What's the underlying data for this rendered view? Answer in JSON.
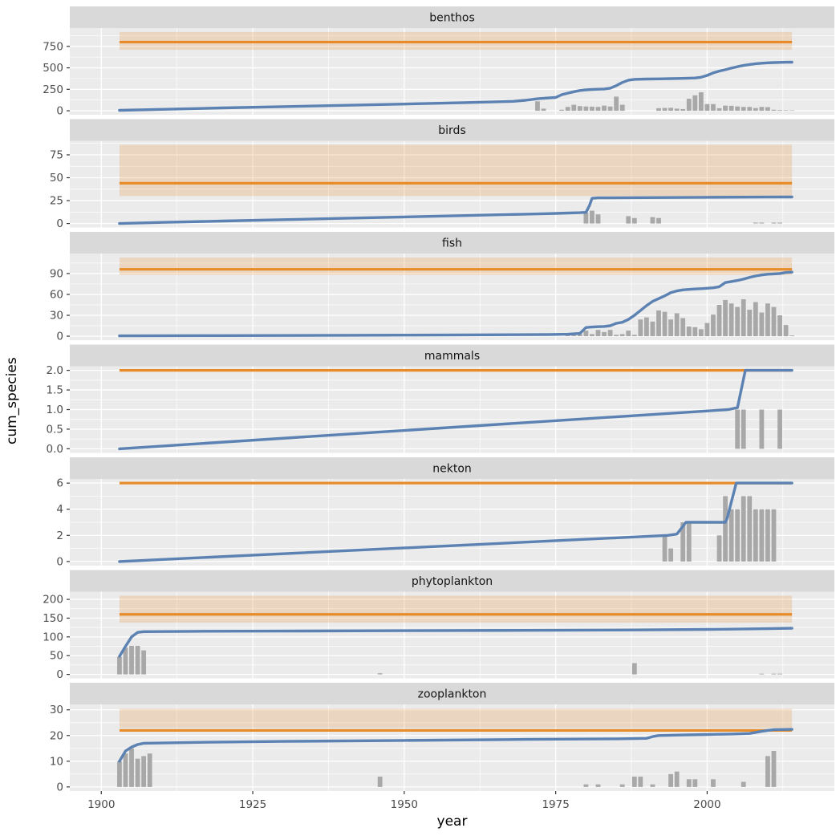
{
  "axes": {
    "x_label": "year",
    "y_label": "cum_species",
    "x_ticks": [
      1900,
      1925,
      1950,
      1975,
      2000
    ],
    "x_tick_labels": [
      "1900",
      "1925",
      "1950",
      "1975",
      "2000"
    ],
    "x_minor": [
      1912.5,
      1937.5,
      1962.5,
      1987.5,
      2012.5
    ],
    "xlim": [
      1894.8,
      2021
    ],
    "data_x_range": [
      1903,
      2014
    ]
  },
  "colors": {
    "panel_bg": "#EBEBEB",
    "strip_bg": "#D9D9D9",
    "grid": "#FFFFFF",
    "bar": "#A8A8A8",
    "cum_line": "#5B82B2",
    "ref_line": "#E78C28",
    "ref_band": "rgba(231,140,40,0.22)",
    "tick_text": "#4D4D4D",
    "strip_text": "#141414",
    "tick_mark": "#333333"
  },
  "chart_data": [
    {
      "type": "line+bar",
      "facet": "benthos",
      "ylim": [
        -46,
        963
      ],
      "y_ticks": [
        0,
        250,
        500,
        750
      ],
      "y_tick_labels": [
        "0",
        "250",
        "500",
        "750"
      ],
      "y_minor": [
        125,
        375,
        625,
        875
      ],
      "reference_line": 800,
      "reference_band": [
        710,
        917
      ],
      "line": [
        [
          1903,
          5
        ],
        [
          1910,
          17
        ],
        [
          1920,
          33
        ],
        [
          1930,
          48
        ],
        [
          1940,
          63
        ],
        [
          1950,
          78
        ],
        [
          1960,
          95
        ],
        [
          1968,
          110
        ],
        [
          1970,
          122
        ],
        [
          1972,
          140
        ],
        [
          1974,
          150
        ],
        [
          1975,
          155
        ],
        [
          1976,
          188
        ],
        [
          1977,
          205
        ],
        [
          1978,
          222
        ],
        [
          1979,
          236
        ],
        [
          1980,
          244
        ],
        [
          1981,
          248
        ],
        [
          1982,
          251
        ],
        [
          1983,
          254
        ],
        [
          1984,
          263
        ],
        [
          1985,
          292
        ],
        [
          1986,
          330
        ],
        [
          1987,
          357
        ],
        [
          1988,
          366
        ],
        [
          1990,
          370
        ],
        [
          1992,
          372
        ],
        [
          1994,
          374
        ],
        [
          1996,
          377
        ],
        [
          1998,
          382
        ],
        [
          1999,
          390
        ],
        [
          2000,
          412
        ],
        [
          2001,
          442
        ],
        [
          2002,
          462
        ],
        [
          2003,
          478
        ],
        [
          2004,
          497
        ],
        [
          2005,
          514
        ],
        [
          2006,
          528
        ],
        [
          2007,
          539
        ],
        [
          2008,
          548
        ],
        [
          2009,
          554
        ],
        [
          2010,
          558
        ],
        [
          2011,
          561
        ],
        [
          2012,
          563
        ],
        [
          2013,
          565
        ],
        [
          2014,
          566
        ]
      ],
      "bars": [
        [
          1972,
          110
        ],
        [
          1973,
          25
        ],
        [
          1976,
          12
        ],
        [
          1977,
          45
        ],
        [
          1978,
          70
        ],
        [
          1979,
          55
        ],
        [
          1980,
          50
        ],
        [
          1981,
          48
        ],
        [
          1982,
          45
        ],
        [
          1983,
          60
        ],
        [
          1984,
          50
        ],
        [
          1985,
          165
        ],
        [
          1986,
          70
        ],
        [
          1992,
          30
        ],
        [
          1993,
          33
        ],
        [
          1994,
          35
        ],
        [
          1995,
          25
        ],
        [
          1996,
          20
        ],
        [
          1997,
          140
        ],
        [
          1998,
          180
        ],
        [
          1999,
          215
        ],
        [
          2000,
          78
        ],
        [
          2001,
          78
        ],
        [
          2002,
          30
        ],
        [
          2003,
          60
        ],
        [
          2004,
          58
        ],
        [
          2005,
          50
        ],
        [
          2006,
          45
        ],
        [
          2007,
          45
        ],
        [
          2008,
          32
        ],
        [
          2009,
          45
        ],
        [
          2010,
          42
        ],
        [
          2011,
          12
        ],
        [
          2012,
          8
        ],
        [
          2013,
          6
        ],
        [
          2014,
          5
        ]
      ]
    },
    {
      "type": "line+bar",
      "facet": "birds",
      "ylim": [
        -4.3,
        90.3
      ],
      "y_ticks": [
        0,
        25,
        50,
        75
      ],
      "y_tick_labels": [
        "0",
        "25",
        "50",
        "75"
      ],
      "y_minor": [
        12.5,
        37.5,
        62.5,
        87.5
      ],
      "reference_line": 44,
      "reference_band": [
        30,
        86
      ],
      "line": [
        [
          1903,
          0
        ],
        [
          1910,
          1.2
        ],
        [
          1920,
          2.7
        ],
        [
          1930,
          4.2
        ],
        [
          1940,
          5.7
        ],
        [
          1950,
          7.2
        ],
        [
          1960,
          8.7
        ],
        [
          1970,
          10.2
        ],
        [
          1975,
          11
        ],
        [
          1979,
          11.8
        ],
        [
          1980,
          12.2
        ],
        [
          1980.6,
          20
        ],
        [
          1981,
          27.5
        ],
        [
          1982,
          28
        ],
        [
          1990,
          28.3
        ],
        [
          2000,
          28.6
        ],
        [
          2010,
          28.9
        ],
        [
          2014,
          29
        ]
      ],
      "bars": [
        [
          1980,
          12
        ],
        [
          1981,
          14
        ],
        [
          1982,
          10
        ],
        [
          1987,
          8
        ],
        [
          1988,
          6
        ],
        [
          1991,
          7
        ],
        [
          1992,
          6
        ],
        [
          2008,
          1
        ],
        [
          2009,
          1
        ],
        [
          2011,
          1
        ],
        [
          2012,
          1
        ]
      ]
    },
    {
      "type": "line+bar",
      "facet": "fish",
      "ylim": [
        -5.7,
        118.7
      ],
      "y_ticks": [
        0,
        30,
        60,
        90
      ],
      "y_tick_labels": [
        "0",
        "30",
        "60",
        "90"
      ],
      "y_minor": [
        15,
        45,
        75,
        105
      ],
      "reference_line": 96,
      "reference_band": [
        88,
        113
      ],
      "line": [
        [
          1903,
          0.5
        ],
        [
          1920,
          0.9
        ],
        [
          1940,
          1.3
        ],
        [
          1950,
          1.6
        ],
        [
          1960,
          1.9
        ],
        [
          1968,
          2.1
        ],
        [
          1974,
          2.4
        ],
        [
          1977,
          2.8
        ],
        [
          1979,
          4
        ],
        [
          1980,
          12.5
        ],
        [
          1981,
          13.2
        ],
        [
          1982,
          13.6
        ],
        [
          1983,
          14
        ],
        [
          1984,
          15
        ],
        [
          1985,
          18.5
        ],
        [
          1986,
          20
        ],
        [
          1987,
          24
        ],
        [
          1988,
          30
        ],
        [
          1989,
          37
        ],
        [
          1990,
          44
        ],
        [
          1991,
          50
        ],
        [
          1992,
          54
        ],
        [
          1993,
          58
        ],
        [
          1994,
          62.5
        ],
        [
          1995,
          65
        ],
        [
          1996,
          66.5
        ],
        [
          1997,
          67.2
        ],
        [
          1998,
          67.8
        ],
        [
          1999,
          68.2
        ],
        [
          2000,
          68.8
        ],
        [
          2001,
          69.5
        ],
        [
          2002,
          71
        ],
        [
          2003,
          77
        ],
        [
          2004,
          78.5
        ],
        [
          2005,
          80
        ],
        [
          2006,
          82
        ],
        [
          2007,
          84.5
        ],
        [
          2008,
          86.5
        ],
        [
          2009,
          88
        ],
        [
          2010,
          89
        ],
        [
          2011,
          89.5
        ],
        [
          2012,
          90
        ],
        [
          2013,
          91.5
        ],
        [
          2014,
          92
        ]
      ],
      "bars": [
        [
          1977,
          4
        ],
        [
          1978,
          3
        ],
        [
          1979,
          3
        ],
        [
          1980,
          8
        ],
        [
          1981,
          3
        ],
        [
          1982,
          9
        ],
        [
          1983,
          6
        ],
        [
          1984,
          9
        ],
        [
          1985,
          2
        ],
        [
          1986,
          3
        ],
        [
          1987,
          8
        ],
        [
          1988,
          2
        ],
        [
          1989,
          24
        ],
        [
          1990,
          27
        ],
        [
          1991,
          21
        ],
        [
          1992,
          37
        ],
        [
          1993,
          35
        ],
        [
          1994,
          24
        ],
        [
          1995,
          33
        ],
        [
          1996,
          26
        ],
        [
          1997,
          14
        ],
        [
          1998,
          13
        ],
        [
          1999,
          10
        ],
        [
          2000,
          19
        ],
        [
          2001,
          31
        ],
        [
          2002,
          45
        ],
        [
          2003,
          52
        ],
        [
          2004,
          47
        ],
        [
          2005,
          42
        ],
        [
          2006,
          53
        ],
        [
          2007,
          38
        ],
        [
          2008,
          49
        ],
        [
          2009,
          34
        ],
        [
          2010,
          47
        ],
        [
          2011,
          42
        ],
        [
          2012,
          30
        ],
        [
          2013,
          16
        ],
        [
          2014,
          1
        ]
      ]
    },
    {
      "type": "line+bar",
      "facet": "mammals",
      "ylim": [
        -0.105,
        2.105
      ],
      "y_ticks": [
        0,
        0.5,
        1,
        1.5,
        2
      ],
      "y_tick_labels": [
        "0.0",
        "0.5",
        "1.0",
        "1.5",
        "2.0"
      ],
      "y_minor": [
        0.25,
        0.75,
        1.25,
        1.75
      ],
      "reference_line": 2,
      "reference_band": null,
      "line": [
        [
          1903,
          0
        ],
        [
          2003.5,
          1
        ],
        [
          2005,
          1.05
        ],
        [
          2006.3,
          2
        ],
        [
          2014,
          2
        ]
      ],
      "bars": [
        [
          2005,
          1
        ],
        [
          2006,
          1
        ],
        [
          2009,
          1
        ],
        [
          2012,
          1
        ]
      ]
    },
    {
      "type": "line+bar",
      "facet": "nekton",
      "ylim": [
        -0.315,
        6.315
      ],
      "y_ticks": [
        0,
        2,
        4,
        6
      ],
      "y_tick_labels": [
        "0",
        "2",
        "4",
        "6"
      ],
      "y_minor": [
        1,
        3,
        5
      ],
      "reference_line": 6,
      "reference_band": null,
      "line": [
        [
          1903,
          0
        ],
        [
          1993.5,
          2
        ],
        [
          1995,
          2.1
        ],
        [
          1996.5,
          3
        ],
        [
          2003,
          3
        ],
        [
          2003.3,
          3.3
        ],
        [
          2004.8,
          6
        ],
        [
          2014,
          6
        ]
      ],
      "bars": [
        [
          1993,
          2
        ],
        [
          1994,
          1
        ],
        [
          1996,
          3
        ],
        [
          1997,
          3
        ],
        [
          2002,
          2
        ],
        [
          2003,
          5
        ],
        [
          2004,
          4
        ],
        [
          2005,
          4
        ],
        [
          2006,
          5
        ],
        [
          2007,
          5
        ],
        [
          2008,
          4
        ],
        [
          2009,
          4
        ],
        [
          2010,
          4
        ],
        [
          2011,
          4
        ]
      ]
    },
    {
      "type": "line+bar",
      "facet": "phytoplankton",
      "ylim": [
        -10.5,
        220.5
      ],
      "y_ticks": [
        0,
        50,
        100,
        150,
        200
      ],
      "y_tick_labels": [
        "0",
        "50",
        "100",
        "150",
        "200"
      ],
      "y_minor": [
        25,
        75,
        125,
        175
      ],
      "reference_line": 160,
      "reference_band": [
        138,
        210
      ],
      "line": [
        [
          1903,
          48
        ],
        [
          1904,
          75
        ],
        [
          1905,
          100
        ],
        [
          1906,
          112
        ],
        [
          1907,
          114
        ],
        [
          1915,
          114.8
        ],
        [
          1930,
          115.5
        ],
        [
          1950,
          116.5
        ],
        [
          1970,
          117.5
        ],
        [
          1988,
          118.5
        ],
        [
          2000,
          120
        ],
        [
          2010,
          122
        ],
        [
          2014,
          123
        ]
      ],
      "bars": [
        [
          1903,
          47
        ],
        [
          1904,
          71
        ],
        [
          1905,
          76
        ],
        [
          1906,
          76
        ],
        [
          1907,
          64
        ],
        [
          1946,
          3
        ],
        [
          1988,
          30
        ],
        [
          2009,
          2
        ],
        [
          2011,
          2
        ],
        [
          2012,
          2
        ]
      ]
    },
    {
      "type": "line+bar",
      "facet": "zooplankton",
      "ylim": [
        -1.6,
        32.1
      ],
      "y_ticks": [
        0,
        10,
        20,
        30
      ],
      "y_tick_labels": [
        "0",
        "10",
        "20",
        "30"
      ],
      "y_minor": [
        5,
        15,
        25
      ],
      "reference_line": 22,
      "reference_band": [
        23,
        30.4
      ],
      "line": [
        [
          1903,
          10
        ],
        [
          1904,
          14
        ],
        [
          1905,
          15.5
        ],
        [
          1906,
          16.5
        ],
        [
          1907,
          17
        ],
        [
          1915,
          17.3
        ],
        [
          1930,
          17.7
        ],
        [
          1950,
          18.1
        ],
        [
          1970,
          18.5
        ],
        [
          1985,
          18.7
        ],
        [
          1990,
          18.9
        ],
        [
          1991,
          19.6
        ],
        [
          1992,
          20
        ],
        [
          1996,
          20.2
        ],
        [
          2000,
          20.4
        ],
        [
          2004,
          20.6
        ],
        [
          2007,
          20.8
        ],
        [
          2008,
          21.2
        ],
        [
          2009,
          21.6
        ],
        [
          2010,
          22
        ],
        [
          2011,
          22.3
        ],
        [
          2014,
          22.4
        ]
      ],
      "bars": [
        [
          1903,
          10
        ],
        [
          1904,
          13
        ],
        [
          1905,
          15
        ],
        [
          1906,
          11
        ],
        [
          1907,
          12
        ],
        [
          1908,
          13
        ],
        [
          1946,
          4
        ],
        [
          1980,
          1
        ],
        [
          1982,
          1
        ],
        [
          1986,
          1
        ],
        [
          1988,
          4
        ],
        [
          1989,
          4
        ],
        [
          1991,
          1
        ],
        [
          1994,
          5
        ],
        [
          1995,
          6
        ],
        [
          1997,
          3
        ],
        [
          1998,
          3
        ],
        [
          2001,
          3
        ],
        [
          2006,
          2
        ],
        [
          2010,
          12
        ],
        [
          2011,
          14
        ]
      ]
    }
  ]
}
